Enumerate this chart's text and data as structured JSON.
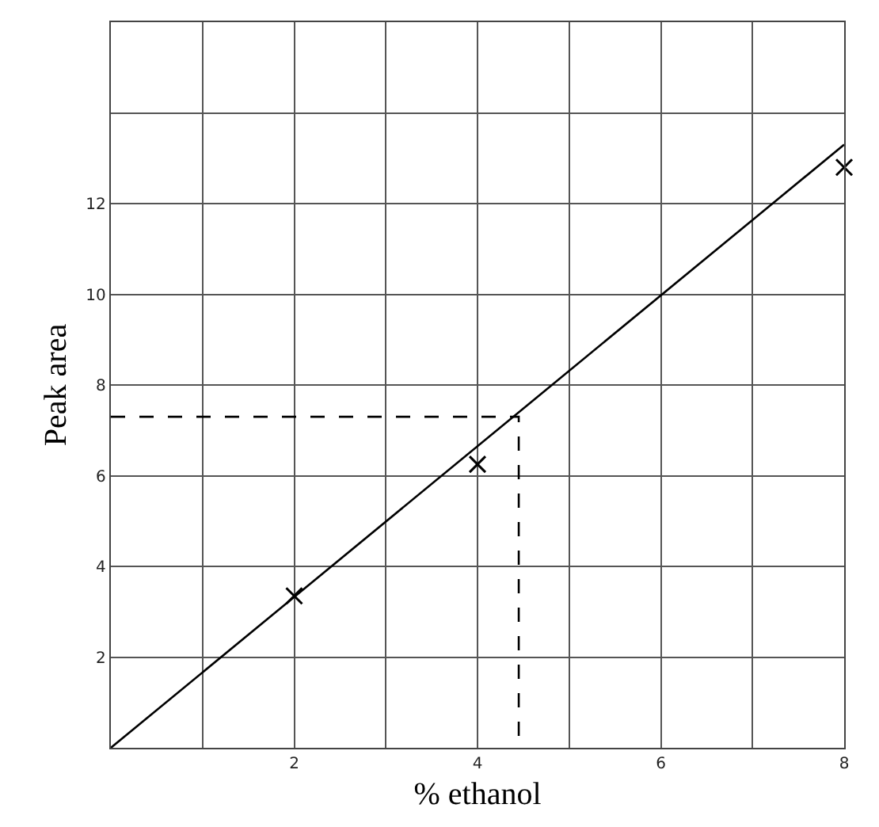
{
  "chart_data": {
    "type": "scatter",
    "xlabel": "% ethanol",
    "ylabel": "Peak area",
    "xlim": [
      0,
      8
    ],
    "ylim": [
      0,
      16
    ],
    "xticks": [
      {
        "value": 0,
        "label": null
      },
      {
        "value": 1,
        "label": null
      },
      2,
      {
        "value": 3,
        "label": null
      },
      4,
      {
        "value": 5,
        "label": null
      },
      6,
      {
        "value": 7,
        "label": null
      },
      8
    ],
    "yticks": [
      {
        "value": 0,
        "label": null
      },
      2,
      4,
      6,
      8,
      10,
      12,
      {
        "value": 14,
        "label": null
      },
      {
        "value": 16,
        "label": null
      }
    ],
    "grid": true,
    "series": [
      {
        "color": "#000000",
        "marker": "cross",
        "x": [
          2,
          4,
          8
        ],
        "values": [
          3.35,
          6.25,
          12.8
        ]
      },
      {
        "type": "line",
        "color": "#000000",
        "marker": "none",
        "line_style": "solid",
        "x": [
          0,
          8
        ],
        "values": [
          0,
          13.3
        ]
      },
      {
        "type": "line",
        "color": "#000000",
        "marker": "none",
        "line_style": "dashed",
        "x": [
          0,
          4.45,
          4.45
        ],
        "values": [
          7.3,
          7.3,
          0
        ]
      }
    ]
  }
}
